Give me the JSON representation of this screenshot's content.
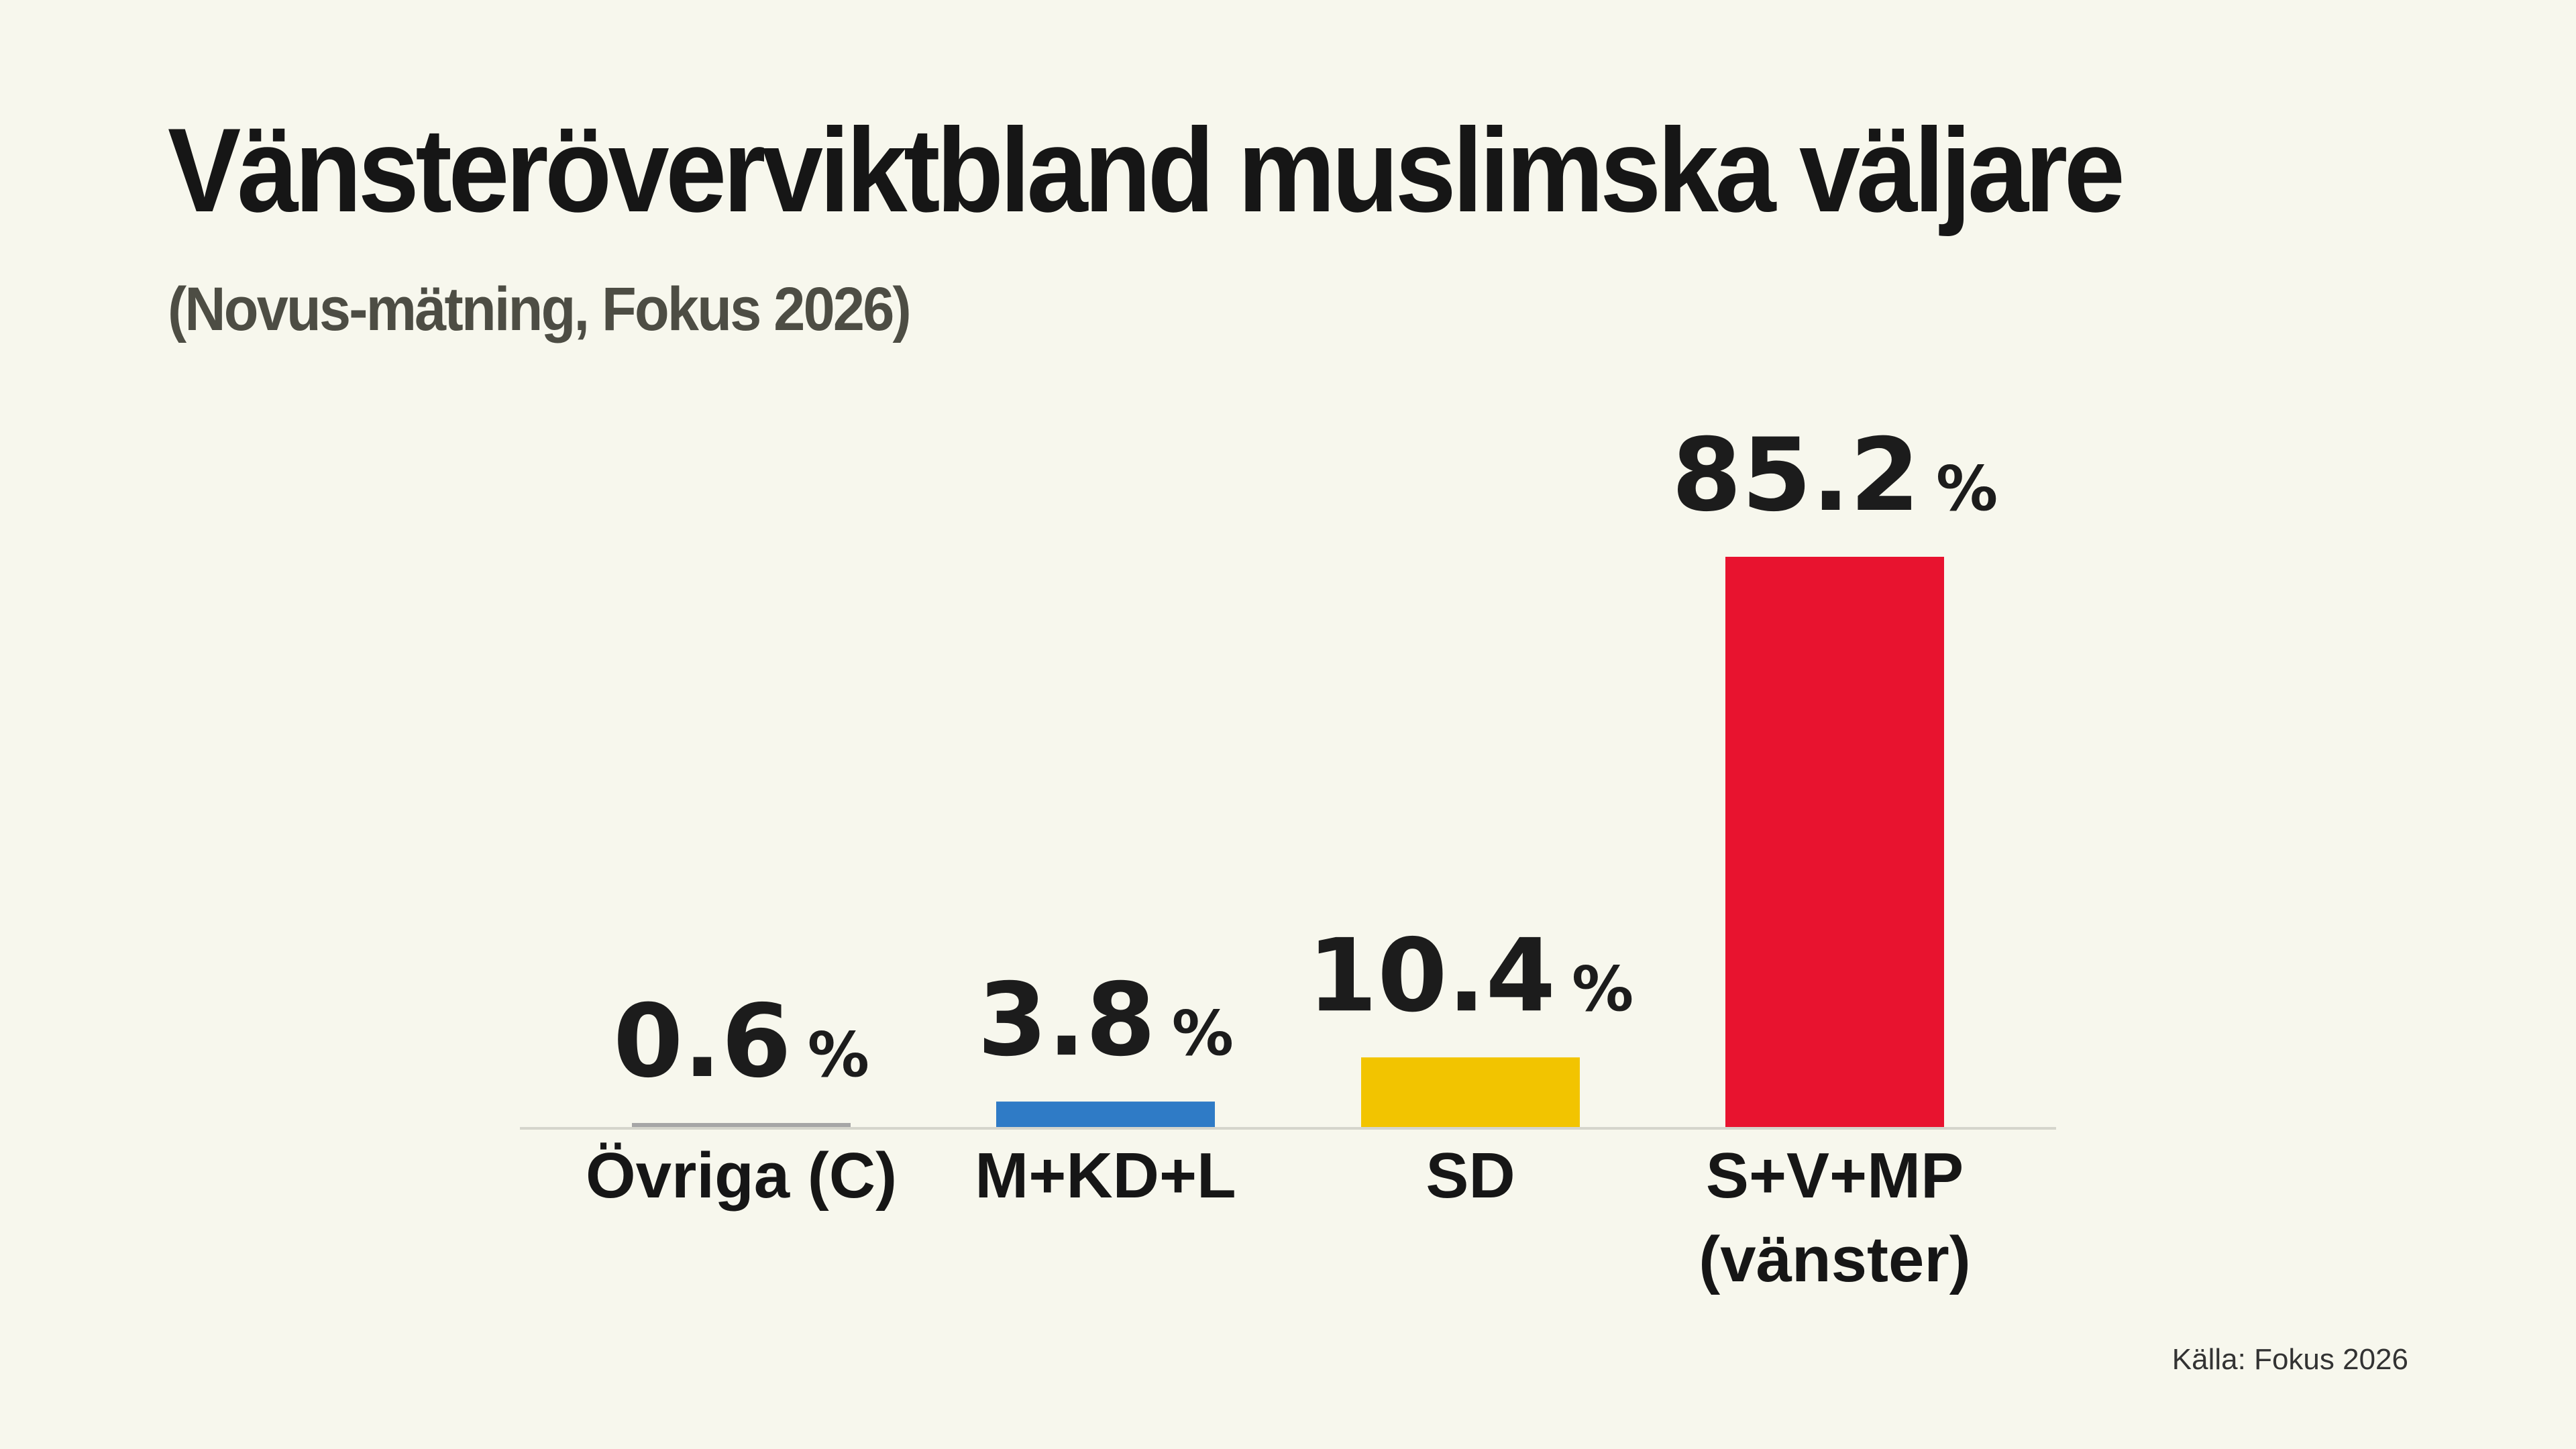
{
  "title": "Vänsteröverviktbland muslimska väljare",
  "subtitle": "(Novus-mätning, Fokus 2026)",
  "source": "Källa: Fokus 2026",
  "chart_data": {
    "type": "bar",
    "categories": [
      [
        "Övriga (C)"
      ],
      [
        "M+KD+L"
      ],
      [
        "SD"
      ],
      [
        "S+V+MP",
        "(vänster)"
      ]
    ],
    "values": [
      0.6,
      3.8,
      10.4,
      85.2
    ],
    "value_labels": [
      "0.6",
      "3.8",
      "10.4",
      "85.2"
    ],
    "unit": "%",
    "colors": [
      "#a6a6a6",
      "#2f7bc6",
      "#f2c400",
      "#e8132f"
    ],
    "ylim": [
      0,
      85.2
    ],
    "grid": false,
    "legend": "none"
  }
}
